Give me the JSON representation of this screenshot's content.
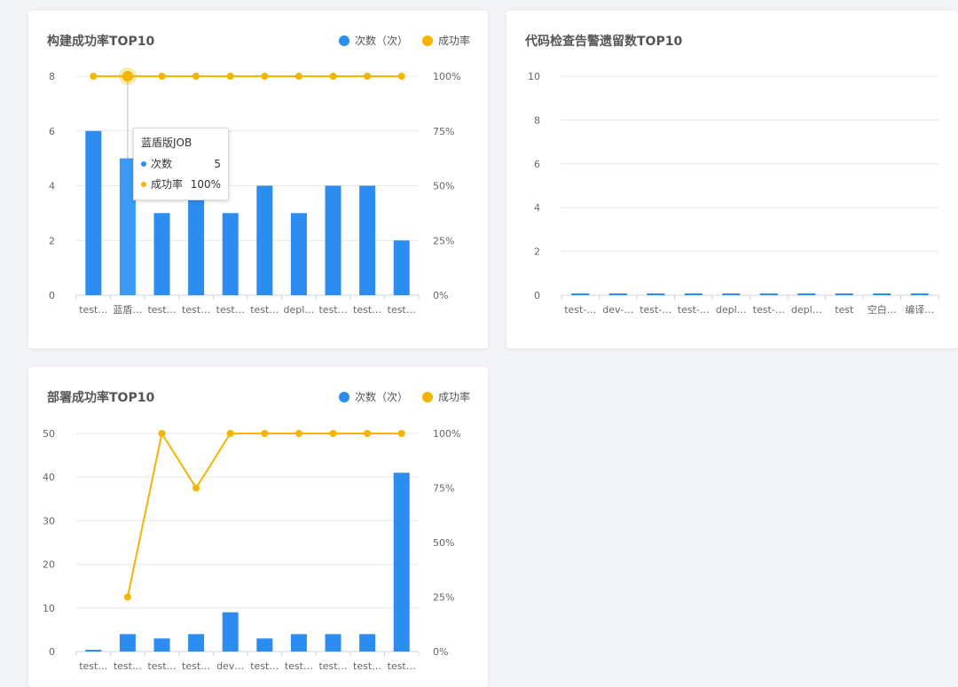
{
  "colors": {
    "bar": "#2d8cf0",
    "line": "#f5b400",
    "grid": "#e8e8e8"
  },
  "legend": {
    "count_label": "次数（次）",
    "rate_label": "成功率"
  },
  "chart_data": [
    {
      "type": "bar+line",
      "title": "构建成功率TOP10",
      "categories": [
        "test…",
        "蓝盾…",
        "test…",
        "test…",
        "test…",
        "test…",
        "depl…",
        "test…",
        "test…",
        "test…"
      ],
      "series": [
        {
          "name": "次数（次）",
          "type": "bar",
          "axis": "left",
          "values": [
            6,
            5,
            3,
            4,
            3,
            4,
            3,
            4,
            4,
            2
          ]
        },
        {
          "name": "成功率",
          "type": "line",
          "axis": "right",
          "values": [
            100,
            100,
            100,
            100,
            100,
            100,
            100,
            100,
            100,
            100
          ]
        }
      ],
      "ylim": [
        0,
        8
      ],
      "yticks": [
        "0",
        "2",
        "4",
        "6",
        "8"
      ],
      "y2lim": [
        0,
        100
      ],
      "y2ticks": [
        "0%",
        "25%",
        "50%",
        "75%",
        "100%"
      ],
      "highlight_index": 1,
      "tooltip": {
        "title": "蓝盾版JOB",
        "rows": [
          {
            "label": "次数",
            "value": "5"
          },
          {
            "label": "成功率",
            "value": "100%"
          }
        ]
      }
    },
    {
      "type": "bar",
      "title": "代码检查告警遗留数TOP10",
      "categories": [
        "test-…",
        "dev-…",
        "test-…",
        "test-…",
        "depl…",
        "test-…",
        "depl…",
        "test",
        "空白…",
        "编译…"
      ],
      "series": [
        {
          "name": "",
          "type": "bar",
          "axis": "left",
          "values": [
            0,
            0,
            0,
            0,
            0,
            0,
            0,
            0,
            0,
            0
          ]
        }
      ],
      "ylim": [
        0,
        10
      ],
      "yticks": [
        "0",
        "2",
        "4",
        "6",
        "8",
        "10"
      ]
    },
    {
      "type": "bar+line",
      "title": "部署成功率TOP10",
      "categories": [
        "test…",
        "test…",
        "test…",
        "test…",
        "dev…",
        "test…",
        "test…",
        "test…",
        "test…",
        "test…"
      ],
      "series": [
        {
          "name": "次数（次）",
          "type": "bar",
          "axis": "left",
          "values": [
            0.3,
            4,
            3,
            4,
            9,
            3,
            4,
            4,
            4,
            41
          ]
        },
        {
          "name": "成功率",
          "type": "line",
          "axis": "right",
          "values": [
            null,
            25,
            100,
            75,
            100,
            100,
            100,
            100,
            100,
            100
          ]
        }
      ],
      "ylim": [
        0,
        50
      ],
      "yticks": [
        "0",
        "10",
        "20",
        "30",
        "40",
        "50"
      ],
      "y2lim": [
        0,
        100
      ],
      "y2ticks": [
        "0%",
        "25%",
        "50%",
        "75%",
        "100%"
      ]
    }
  ]
}
